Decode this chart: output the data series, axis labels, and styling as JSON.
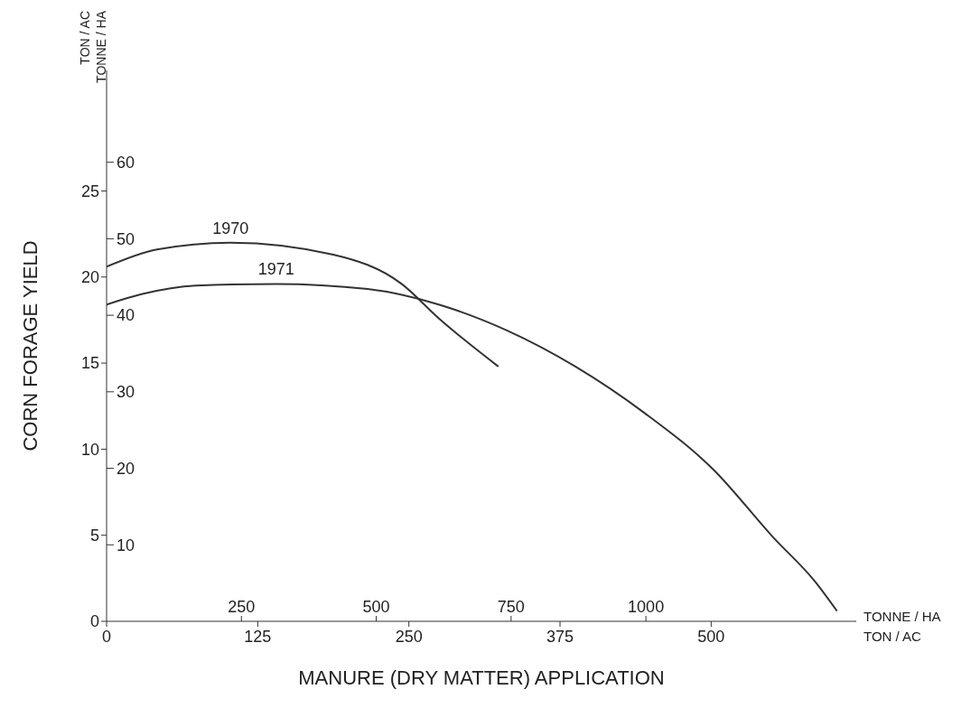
{
  "chart_data": {
    "type": "line",
    "xlabel": "MANURE (DRY MATTER) APPLICATION",
    "ylabel": "CORN FORAGE YIELD",
    "x2label": "TONNE / HA",
    "annotations": [
      "TON / AC",
      "TONNE / HA",
      "TON / AC"
    ],
    "xlim": [
      0,
      620
    ],
    "xticks": [
      0,
      125,
      250,
      375,
      500
    ],
    "x2lim": [
      0,
      1390
    ],
    "x2ticks": [
      250,
      500,
      750,
      1000
    ],
    "ylim": [
      0,
      32
    ],
    "yticks": [
      0,
      5,
      10,
      15,
      20,
      25
    ],
    "y2lim": [
      0,
      72
    ],
    "y2ticks": [
      10,
      20,
      30,
      40,
      50,
      60
    ],
    "grid": false,
    "legend": false,
    "marker": "none",
    "line_style": "solid",
    "series": [
      {
        "name": "1970",
        "color": "#333333",
        "x": [
          0,
          41.7,
          102.6,
          187.5,
          244,
          274.7,
          324
        ],
        "values": [
          20.6,
          21.6,
          22.0,
          21.3,
          19.6,
          17.6,
          14.8
        ]
      },
      {
        "name": "1971",
        "color": "#333333",
        "x": [
          0,
          28.8,
          73.7,
          140.2,
          215.9,
          274.7,
          331,
          387.7,
          444.9,
          502,
          551,
          586,
          604
        ],
        "values": [
          18.4,
          19.0,
          19.5,
          19.6,
          19.3,
          18.4,
          16.9,
          14.8,
          12.1,
          8.8,
          4.9,
          2.3,
          0.6
        ]
      }
    ]
  }
}
